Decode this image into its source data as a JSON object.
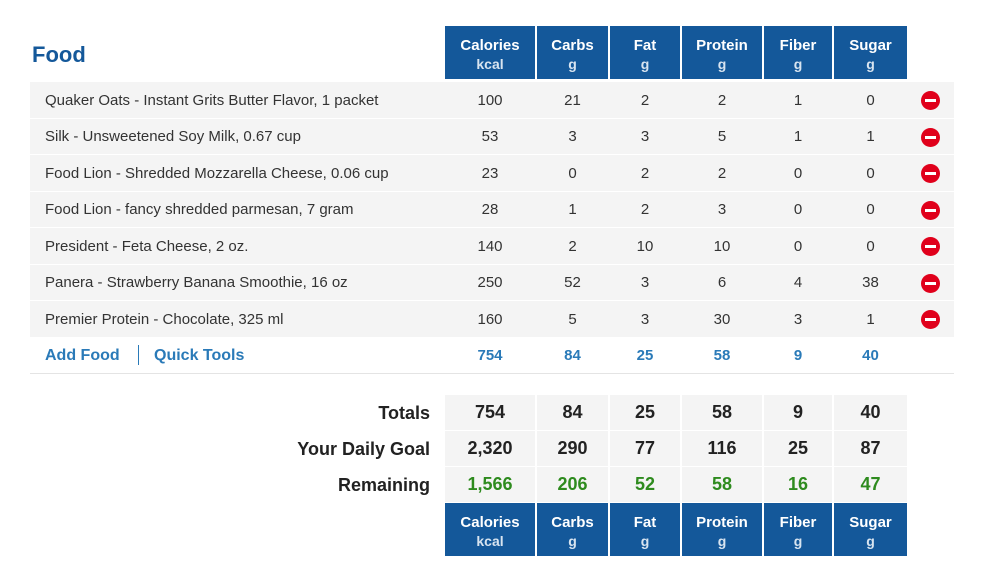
{
  "section_title": "Food",
  "columns": [
    {
      "name": "Calories",
      "unit": "kcal"
    },
    {
      "name": "Carbs",
      "unit": "g"
    },
    {
      "name": "Fat",
      "unit": "g"
    },
    {
      "name": "Protein",
      "unit": "g"
    },
    {
      "name": "Fiber",
      "unit": "g"
    },
    {
      "name": "Sugar",
      "unit": "g"
    }
  ],
  "rows": [
    {
      "food": "Quaker Oats - Instant Grits Butter Flavor, 1 packet",
      "values": [
        100,
        21,
        2,
        2,
        1,
        0
      ]
    },
    {
      "food": "Silk - Unsweetened Soy Milk, 0.67 cup",
      "values": [
        53,
        3,
        3,
        5,
        1,
        1
      ]
    },
    {
      "food": "Food Lion - Shredded Mozzarella Cheese, 0.06 cup",
      "values": [
        23,
        0,
        2,
        2,
        0,
        0
      ]
    },
    {
      "food": "Food Lion - fancy shredded parmesan, 7 gram",
      "values": [
        28,
        1,
        2,
        3,
        0,
        0
      ]
    },
    {
      "food": "President - Feta Cheese, 2 oz.",
      "values": [
        140,
        2,
        10,
        10,
        0,
        0
      ]
    },
    {
      "food": "Panera - Strawberry Banana Smoothie, 16 oz",
      "values": [
        250,
        52,
        3,
        6,
        4,
        38
      ]
    },
    {
      "food": "Premier Protein - Chocolate, 325 ml",
      "values": [
        160,
        5,
        3,
        30,
        3,
        1
      ]
    }
  ],
  "links": [
    "Add Food",
    "Quick Tools"
  ],
  "subtotal": [
    754,
    84,
    25,
    58,
    9,
    40
  ],
  "summary": [
    {
      "label": "Totals",
      "values": [
        754,
        84,
        25,
        58,
        9,
        40
      ]
    },
    {
      "label": "Your Daily Goal",
      "values": [
        "2,320",
        290,
        77,
        116,
        25,
        87
      ]
    },
    {
      "label": "Remaining",
      "values": [
        "1,566",
        206,
        52,
        58,
        16,
        47
      ]
    }
  ]
}
